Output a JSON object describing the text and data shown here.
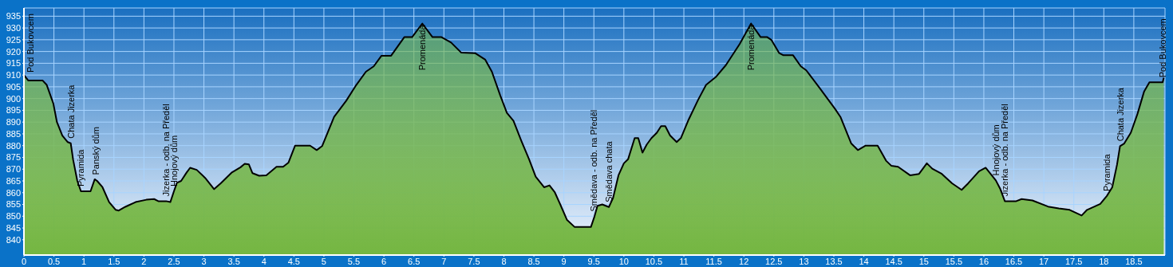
{
  "chart_data": {
    "type": "area",
    "x": [
      0,
      0.07,
      0.31,
      0.38,
      0.49,
      0.55,
      0.64,
      0.73,
      0.78,
      0.82,
      0.89,
      0.95,
      1.11,
      1.18,
      1.22,
      1.31,
      1.42,
      1.53,
      1.58,
      1.69,
      1.86,
      2.04,
      2.17,
      2.24,
      2.37,
      2.44,
      2.5,
      2.55,
      2.62,
      2.71,
      2.77,
      2.88,
      3.02,
      3.17,
      3.28,
      3.46,
      3.61,
      3.68,
      3.75,
      3.81,
      3.92,
      4.04,
      4.21,
      4.32,
      4.41,
      4.52,
      4.77,
      4.88,
      4.97,
      5.17,
      5.37,
      5.54,
      5.7,
      5.83,
      5.96,
      6.12,
      6.34,
      6.47,
      6.64,
      6.81,
      6.96,
      7.12,
      7.29,
      7.52,
      7.69,
      7.8,
      7.94,
      8.05,
      8.16,
      8.29,
      8.42,
      8.53,
      8.67,
      8.76,
      8.85,
      8.94,
      9.05,
      9.18,
      9.45,
      9.51,
      9.56,
      9.64,
      9.75,
      9.82,
      9.91,
      10.0,
      10.07,
      10.18,
      10.24,
      10.31,
      10.38,
      10.46,
      10.55,
      10.62,
      10.69,
      10.77,
      10.88,
      10.95,
      11.08,
      11.24,
      11.37,
      11.53,
      11.7,
      11.93,
      12.12,
      12.28,
      12.39,
      12.46,
      12.59,
      12.66,
      12.82,
      12.95,
      13.04,
      13.26,
      13.52,
      13.61,
      13.79,
      13.9,
      14.03,
      14.23,
      14.37,
      14.46,
      14.57,
      14.77,
      14.92,
      15.05,
      15.14,
      15.3,
      15.47,
      15.63,
      15.74,
      15.92,
      16.03,
      16.2,
      16.27,
      16.35,
      16.54,
      16.63,
      16.81,
      17.07,
      17.25,
      17.43,
      17.63,
      17.72,
      17.94,
      18.05,
      18.14,
      18.22,
      18.27,
      18.34,
      18.45,
      18.56,
      18.67,
      18.76,
      18.98,
      19.0
    ],
    "series": [
      {
        "color": "#74b641",
        "values": [
          910,
          907.7,
          907.7,
          905.8,
          897.9,
          890,
          884.3,
          881.5,
          881,
          874,
          865,
          860.6,
          860.6,
          865.7,
          865,
          862.3,
          856,
          852.7,
          852.4,
          854,
          856,
          857,
          857.3,
          856.4,
          856.4,
          856,
          860.6,
          864.2,
          865,
          868.5,
          870.6,
          869.7,
          866.3,
          861.5,
          864,
          868.5,
          870.8,
          872.3,
          872,
          868.3,
          867.2,
          867.4,
          871,
          871,
          872.8,
          880,
          880,
          878.1,
          879.8,
          892.2,
          899,
          905.8,
          911.4,
          913.7,
          918.2,
          918.2,
          926.1,
          926.1,
          931.9,
          926.1,
          926.1,
          923.8,
          919.5,
          919.3,
          916.5,
          911.4,
          901.3,
          893.9,
          890.5,
          882.1,
          874.2,
          866.8,
          862.3,
          863.1,
          860.1,
          855,
          848.5,
          845.4,
          845.4,
          849.9,
          854.4,
          855,
          853.9,
          857.8,
          867.4,
          872.5,
          874.2,
          883.2,
          883.2,
          877,
          880.4,
          883.2,
          885.5,
          888.3,
          888.3,
          884.3,
          881.5,
          883.2,
          891.1,
          899.6,
          905.8,
          909.1,
          914.2,
          923.2,
          931.9,
          926.1,
          926.1,
          924.9,
          919.3,
          918.4,
          918.4,
          913.7,
          912,
          904.6,
          895.6,
          892.2,
          880.9,
          878.1,
          880,
          880,
          873.6,
          871.4,
          871,
          867.4,
          868,
          872.5,
          870.2,
          868,
          864,
          861.2,
          864,
          869.1,
          870.6,
          865.2,
          861.8,
          856.4,
          856.4,
          857.3,
          856.7,
          854.1,
          853.3,
          852.7,
          850.3,
          852.7,
          855.2,
          858.6,
          862.3,
          871.9,
          879.8,
          880.9,
          885.5,
          893.4,
          902.9,
          906.9,
          906.9,
          908.9
        ]
      }
    ],
    "xlim": [
      0,
      19.02
    ],
    "xticks": [
      0,
      0.5,
      1,
      1.5,
      2,
      2.5,
      3,
      3.5,
      4,
      4.5,
      5,
      5.5,
      6,
      6.5,
      7,
      7.5,
      8,
      8.5,
      9,
      9.5,
      10,
      10.5,
      11,
      11.5,
      12,
      12.5,
      13,
      13.5,
      14,
      14.5,
      15,
      15.5,
      16,
      16.5,
      17,
      17.5,
      18,
      18.5
    ],
    "ylim": [
      833.5,
      938.5
    ],
    "yticks": [
      840,
      845,
      850,
      855,
      860,
      865,
      870,
      875,
      880,
      885,
      890,
      895,
      900,
      905,
      910,
      915,
      920,
      925,
      930,
      935
    ],
    "grid": true,
    "annotations": [
      {
        "text": "Pod Bukovcem",
        "x": 0.1,
        "y": 909
      },
      {
        "text": "Chata Jizerka",
        "x": 0.78,
        "y": 881
      },
      {
        "text": "Pyramida",
        "x": 0.95,
        "y": 860.6
      },
      {
        "text": "Panský dům",
        "x": 1.2,
        "y": 865.5
      },
      {
        "text": "Jizerka - odb. na Předěl",
        "x": 2.37,
        "y": 856.4
      },
      {
        "text": "Hnojový dům",
        "x": 2.5,
        "y": 860.6
      },
      {
        "text": "Promenáda",
        "x": 6.64,
        "y": 931.9
      },
      {
        "text": "Smědava - odb. na Předěl",
        "x": 9.5,
        "y": 849.9
      },
      {
        "text": "Smědava chata",
        "x": 9.75,
        "y": 853.9
      },
      {
        "text": "Promenáda",
        "x": 12.12,
        "y": 931.9
      },
      {
        "text": "Hnojový dům",
        "x": 16.2,
        "y": 865.2
      },
      {
        "text": "Jizerka - odb. na Předěl",
        "x": 16.35,
        "y": 856.4
      },
      {
        "text": "Pyramida",
        "x": 18.05,
        "y": 858.6
      },
      {
        "text": "Chata Jizerka",
        "x": 18.27,
        "y": 879.8
      },
      {
        "text": "Pod Bukovcem",
        "x": 18.98,
        "y": 906.9
      }
    ]
  }
}
